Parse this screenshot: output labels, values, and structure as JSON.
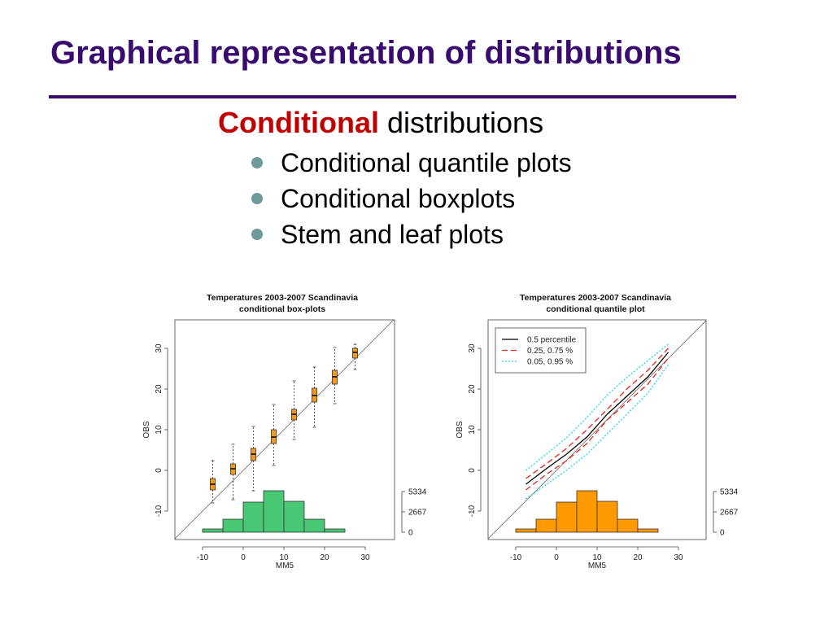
{
  "title": "Graphical representation of distributions",
  "subtitle": {
    "emphasis": "Conditional",
    "rest": "distributions"
  },
  "bullets": [
    "Conditional quantile plots",
    "Conditional boxplots",
    "Stem and leaf plots"
  ],
  "chart_data": [
    {
      "type": "box",
      "title": [
        "Temperatures 2003-2007 Scandinavia",
        "conditional box-plots"
      ],
      "xlabel": "MM5",
      "ylabel": "OBS",
      "xlim": [
        -16.8,
        37.2
      ],
      "ylim": [
        -17,
        37
      ],
      "xticks": [
        -10,
        0,
        10,
        20,
        30
      ],
      "yticks": [
        -10,
        0,
        10,
        20,
        30
      ],
      "y2lim": [
        -960,
        27844
      ],
      "y2ticks": [
        0,
        2667,
        5334
      ],
      "box_color": "#f39a1e",
      "boxes": [
        {
          "x": -7.5,
          "low": -8,
          "q1": -4.8,
          "median": -3.4,
          "q3": -2,
          "high": 2.4
        },
        {
          "x": -2.5,
          "low": -7.2,
          "q1": -1,
          "median": 0.4,
          "q3": 1.6,
          "high": 6.4
        },
        {
          "x": 2.5,
          "low": -5,
          "q1": 2.4,
          "median": 4,
          "q3": 5.4,
          "high": 10.8
        },
        {
          "x": 7.5,
          "low": 1.2,
          "q1": 6.6,
          "median": 8.2,
          "q3": 10,
          "high": 16.2
        },
        {
          "x": 12.5,
          "low": 7.6,
          "q1": 12.4,
          "median": 13.8,
          "q3": 15,
          "high": 22
        },
        {
          "x": 17.5,
          "low": 10.6,
          "q1": 16.8,
          "median": 18.4,
          "q3": 20.2,
          "high": 25.4
        },
        {
          "x": 22.5,
          "low": 16.4,
          "q1": 21.2,
          "median": 23,
          "q3": 24.6,
          "high": 30.2
        },
        {
          "x": 27.5,
          "low": 24.8,
          "q1": 27.6,
          "median": 29,
          "q3": 30,
          "high": 31
        }
      ],
      "histogram": {
        "axis": "y2",
        "color": "#48c774",
        "bins": [
          -10,
          -5,
          0,
          5,
          10,
          15,
          20,
          25,
          30
        ],
        "counts": [
          427,
          1707,
          3947,
          5441,
          4054,
          1707,
          427,
          0
        ]
      }
    },
    {
      "type": "quantile",
      "title": [
        "Temperatures 2003-2007 Scandinavia",
        "conditional quantile plot"
      ],
      "xlabel": "MM5",
      "ylabel": "OBS",
      "xlim": [
        -16.8,
        36.8
      ],
      "ylim": [
        -17,
        37
      ],
      "xticks": [
        -10,
        0,
        10,
        20,
        30
      ],
      "yticks": [
        -10,
        0,
        10,
        20,
        30
      ],
      "y2lim": [
        -960,
        27844
      ],
      "y2ticks": [
        0,
        2667,
        5334
      ],
      "legend": "top-left",
      "x": [
        -7.5,
        -2.5,
        2.5,
        7.5,
        12.5,
        17.5,
        22.5,
        27.5
      ],
      "series": [
        {
          "name": "0.5 percentile",
          "color": "#000000",
          "dash": "solid",
          "values": [
            -3.4,
            0.4,
            4,
            8.2,
            13.8,
            18.4,
            23,
            29
          ]
        },
        {
          "name": "0.25, 0.75 %",
          "color": "#e8241c",
          "dash": "dashed",
          "lower": [
            -4.8,
            -1,
            2.4,
            6.6,
            12.4,
            16.8,
            21.2,
            27.6
          ],
          "upper": [
            -2,
            1.6,
            5.4,
            10,
            15,
            20.2,
            24.6,
            30
          ]
        },
        {
          "name": "0.05, 0.95 %",
          "color": "#20d8f0",
          "dash": "dotted",
          "lower": [
            -7,
            -3.5,
            0,
            4,
            9,
            14,
            19,
            26
          ],
          "upper": [
            0,
            4,
            8,
            13,
            18.5,
            23,
            27,
            31
          ]
        }
      ],
      "histogram": {
        "axis": "y2",
        "color": "#ff9900",
        "bins": [
          -10,
          -5,
          0,
          5,
          10,
          15,
          20,
          25,
          30
        ],
        "counts": [
          427,
          1707,
          3947,
          5441,
          4054,
          1707,
          427,
          0
        ]
      }
    }
  ]
}
